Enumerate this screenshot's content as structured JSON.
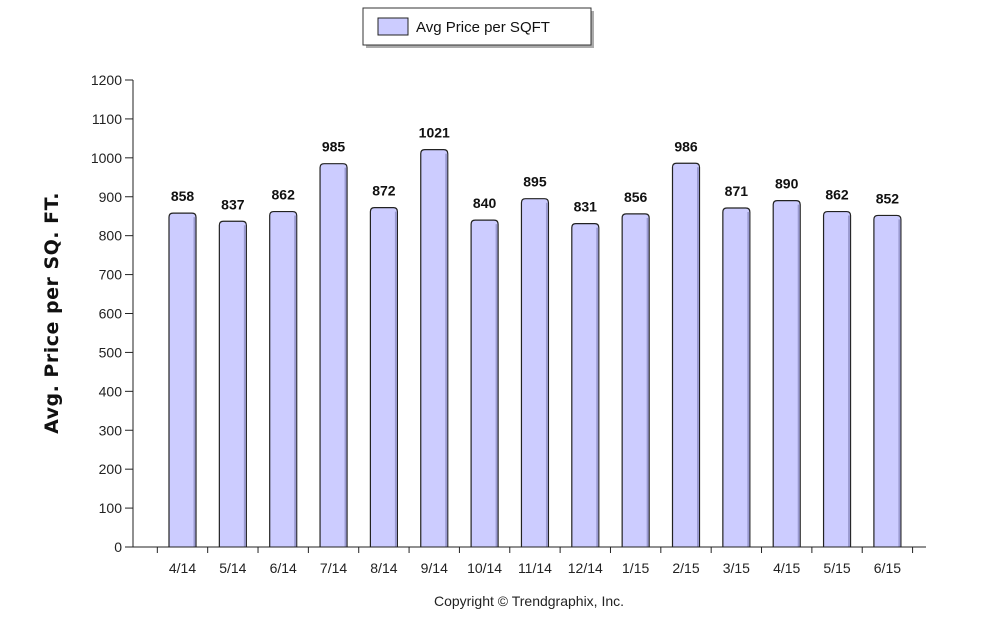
{
  "chart_data": {
    "type": "bar",
    "categories": [
      "4/14",
      "5/14",
      "6/14",
      "7/14",
      "8/14",
      "9/14",
      "10/14",
      "11/14",
      "12/14",
      "1/15",
      "2/15",
      "3/15",
      "4/15",
      "5/15",
      "6/15"
    ],
    "series": [
      {
        "name": "Avg Price per SQFT",
        "values": [
          858,
          837,
          862,
          985,
          872,
          1021,
          840,
          895,
          831,
          856,
          986,
          871,
          890,
          862,
          852
        ]
      }
    ],
    "title": "",
    "xlabel": "",
    "ylabel": "Avg. Price per SQ. FT.",
    "ylim": [
      0,
      1200
    ],
    "yticks": [
      0,
      100,
      200,
      300,
      400,
      500,
      600,
      700,
      800,
      900,
      1000,
      1100,
      1200
    ],
    "grid": false,
    "legend_position": "top-center",
    "bar_color": "#ccccff",
    "bar_stroke": "#222222"
  },
  "footer": {
    "copyright": "Copyright © Trendgraphix, Inc."
  }
}
